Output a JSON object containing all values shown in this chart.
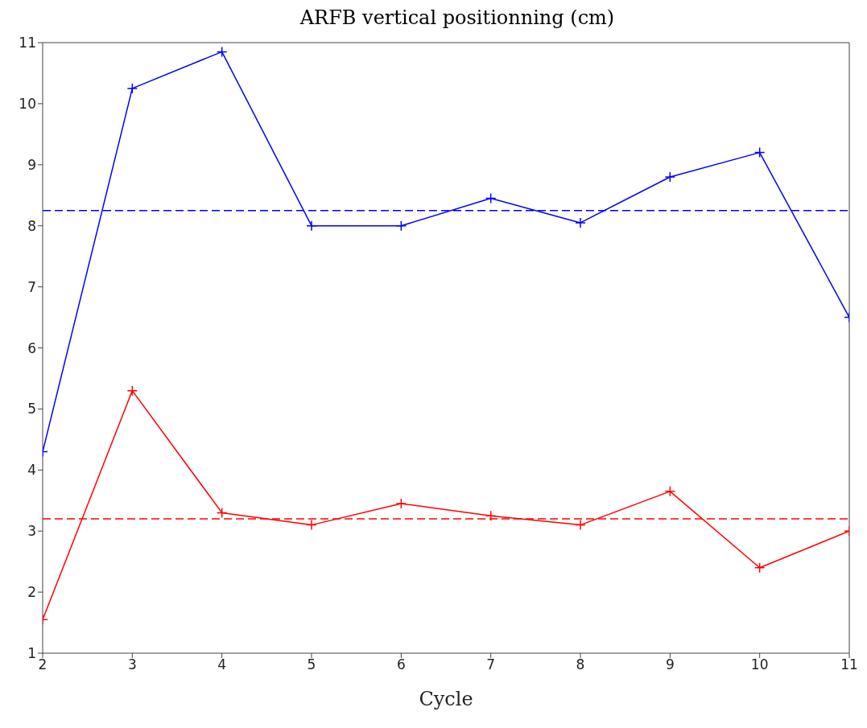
{
  "chart_data": {
    "type": "line",
    "title": "ARFB vertical positionning (cm)",
    "xlabel": "Cycle",
    "x": [
      2,
      3,
      4,
      5,
      6,
      7,
      8,
      9,
      10,
      11
    ],
    "series": [
      {
        "color": "#0000ff",
        "values": [
          4.3,
          10.25,
          10.85,
          8.0,
          8.0,
          8.45,
          8.05,
          8.8,
          9.2,
          6.5
        ]
      },
      {
        "color": "#ff0000",
        "values": [
          1.55,
          5.3,
          3.3,
          3.1,
          3.45,
          3.25,
          3.1,
          3.65,
          2.4,
          3.0
        ]
      }
    ],
    "ref_lines": [
      {
        "axis": "y",
        "value": 8.25,
        "color": "#0000ff",
        "line_style": "dashed"
      },
      {
        "axis": "y",
        "value": 3.2,
        "color": "#ff0000",
        "line_style": "dashed"
      }
    ],
    "xlim": [
      2,
      11
    ],
    "xticks": [
      2,
      3,
      4,
      5,
      6,
      7,
      8,
      9,
      10,
      11
    ],
    "ylim": [
      1,
      11
    ],
    "yticks": [
      1,
      2,
      3,
      4,
      5,
      6,
      7,
      8,
      9,
      10,
      11
    ],
    "grid": false,
    "marker": "cross",
    "line_style": "solid"
  }
}
